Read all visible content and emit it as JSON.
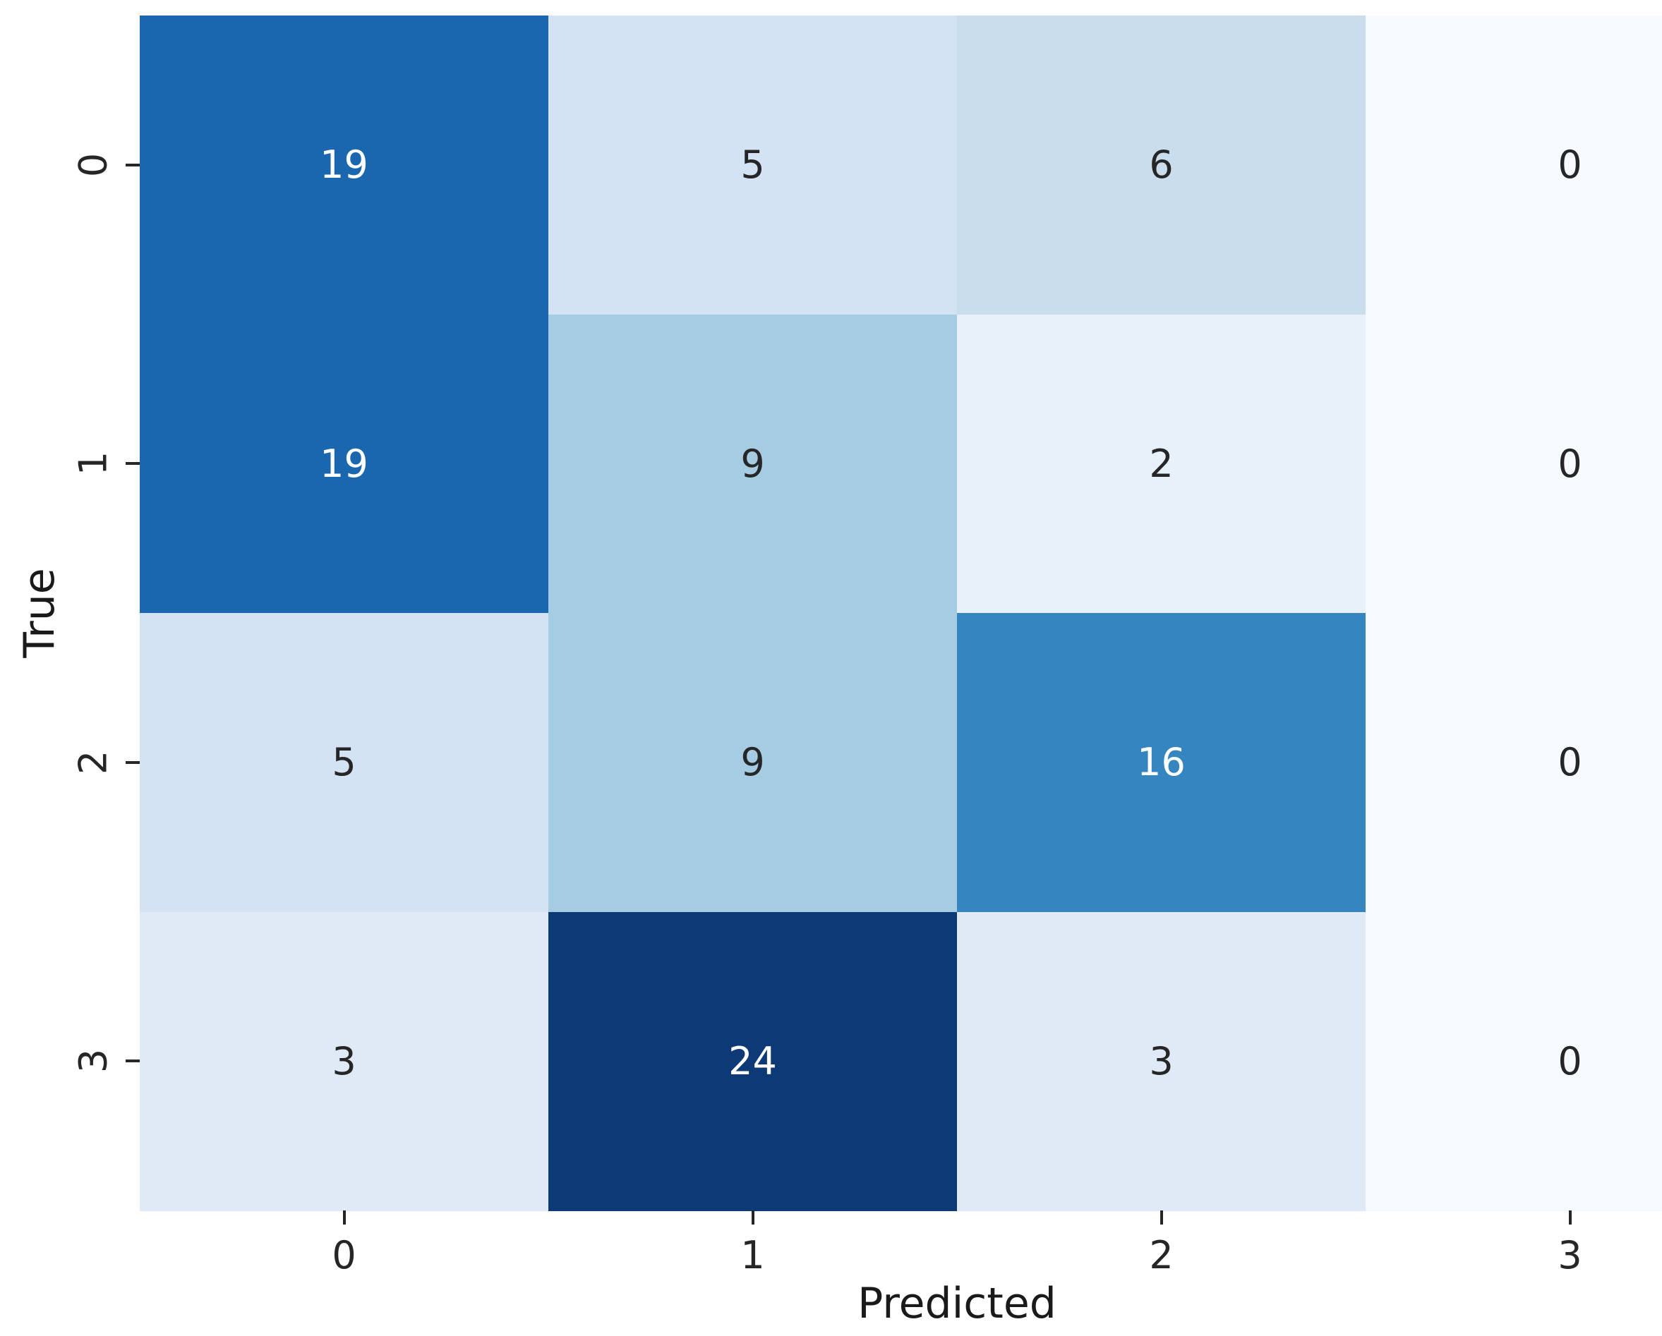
{
  "figure": {
    "background_color": "#ffffff",
    "tick_color": "#262626",
    "label_color": "#1a1a1a"
  },
  "chart_data": {
    "type": "heatmap",
    "subtype": "confusion-matrix",
    "title": "",
    "xlabel": "Predicted",
    "ylabel": "True",
    "x_tick_labels": [
      "0",
      "1",
      "2",
      "3"
    ],
    "y_tick_labels": [
      "0",
      "1",
      "2",
      "3"
    ],
    "matrix": [
      [
        19,
        5,
        6,
        0
      ],
      [
        19,
        9,
        2,
        0
      ],
      [
        5,
        9,
        16,
        0
      ],
      [
        3,
        24,
        3,
        0
      ]
    ],
    "vmin": 0,
    "vmax": 24,
    "colormap": "Blues",
    "legend": "none",
    "grid": false,
    "value_colors": {
      "0": "#f6fafe",
      "2": "#e8f0f9",
      "3": "#dfeaf6",
      "5": "#d4e3f3",
      "6": "#cadded",
      "9": "#a6cce3",
      "16": "#3585c1",
      "19": "#1a66af",
      "24": "#0d3a77"
    },
    "annotation_text_dark": "#262626",
    "annotation_text_light": "#ffffff"
  }
}
